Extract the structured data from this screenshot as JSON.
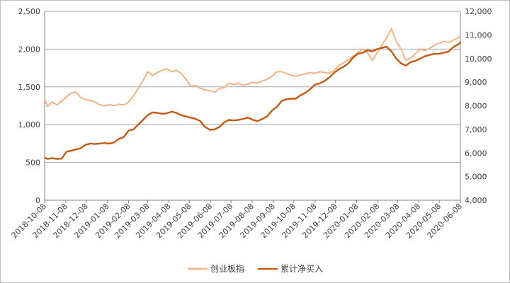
{
  "chart_data": {
    "type": "line",
    "title": "",
    "xlabel": "",
    "ylabel": "",
    "grid": true,
    "legend_position": "bottom",
    "x_ticks": [
      "2018-10-08",
      "2018-11-08",
      "2018-12-08",
      "2019-01-08",
      "2019-02-08",
      "2019-03-08",
      "2019-04-08",
      "2019-05-08",
      "2019-06-08",
      "2019-07-08",
      "2019-08-08",
      "2019-09-08",
      "2019-10-08",
      "2019-11-08",
      "2019-12-08",
      "2020-01-08",
      "2020-02-08",
      "2020-03-08",
      "2020-04-08",
      "2020-05-08",
      "2020-06-08"
    ],
    "y_left": {
      "min": 0,
      "max": 2500,
      "ticks": [
        0,
        500,
        1000,
        1500,
        2000,
        2500
      ],
      "tick_labels": [
        "0",
        "500",
        "1,000",
        "1,500",
        "2,000",
        "2,500"
      ]
    },
    "y_right": {
      "min": 4000,
      "max": 12000,
      "ticks": [
        4000,
        5000,
        6000,
        7000,
        8000,
        9000,
        10000,
        11000,
        12000
      ],
      "tick_labels": [
        "4,000",
        "5,000",
        "6,000",
        "7,000",
        "8,000",
        "9,000",
        "10,000",
        "11,000",
        "12,000"
      ]
    },
    "series": [
      {
        "name": "创业板指",
        "axis": "left",
        "color": "#f4b183",
        "x": [
          "2018-10-08",
          "2018-10-12",
          "2018-10-19",
          "2018-10-26",
          "2018-11-02",
          "2018-11-09",
          "2018-11-16",
          "2018-11-23",
          "2018-11-30",
          "2018-12-07",
          "2018-12-14",
          "2018-12-21",
          "2018-12-28",
          "2019-01-04",
          "2019-01-11",
          "2019-01-18",
          "2019-01-25",
          "2019-02-01",
          "2019-02-08",
          "2019-02-15",
          "2019-02-22",
          "2019-03-01",
          "2019-03-08",
          "2019-03-15",
          "2019-03-22",
          "2019-03-29",
          "2019-04-05",
          "2019-04-12",
          "2019-04-19",
          "2019-04-26",
          "2019-05-03",
          "2019-05-10",
          "2019-05-17",
          "2019-05-24",
          "2019-05-31",
          "2019-06-07",
          "2019-06-14",
          "2019-06-21",
          "2019-06-28",
          "2019-07-05",
          "2019-07-12",
          "2019-07-19",
          "2019-07-26",
          "2019-08-02",
          "2019-08-09",
          "2019-08-16",
          "2019-08-23",
          "2019-08-30",
          "2019-09-06",
          "2019-09-13",
          "2019-09-20",
          "2019-09-27",
          "2019-10-04",
          "2019-10-11",
          "2019-10-18",
          "2019-10-25",
          "2019-11-01",
          "2019-11-08",
          "2019-11-15",
          "2019-11-22",
          "2019-11-29",
          "2019-12-06",
          "2019-12-13",
          "2019-12-20",
          "2019-12-27",
          "2020-01-03",
          "2020-01-10",
          "2020-01-17",
          "2020-01-24",
          "2020-01-31",
          "2020-02-07",
          "2020-02-14",
          "2020-02-21",
          "2020-02-28",
          "2020-03-06",
          "2020-03-13",
          "2020-03-20",
          "2020-03-27",
          "2020-04-03",
          "2020-04-10",
          "2020-04-17",
          "2020-04-24",
          "2020-05-01",
          "2020-05-08",
          "2020-05-15",
          "2020-05-22",
          "2020-05-29",
          "2020-06-05",
          "2020-06-08"
        ],
        "values": [
          1340,
          1240,
          1300,
          1260,
          1310,
          1370,
          1420,
          1430,
          1360,
          1330,
          1320,
          1300,
          1260,
          1250,
          1265,
          1250,
          1270,
          1260,
          1300,
          1380,
          1480,
          1580,
          1700,
          1650,
          1690,
          1720,
          1740,
          1700,
          1720,
          1680,
          1600,
          1510,
          1520,
          1480,
          1460,
          1450,
          1430,
          1480,
          1490,
          1550,
          1530,
          1550,
          1520,
          1540,
          1560,
          1550,
          1580,
          1600,
          1640,
          1700,
          1700,
          1680,
          1650,
          1640,
          1660,
          1670,
          1690,
          1680,
          1700,
          1690,
          1680,
          1720,
          1780,
          1820,
          1860,
          1910,
          1960,
          2000,
          1950,
          1850,
          1950,
          2050,
          2150,
          2270,
          2100,
          2000,
          1850,
          1880,
          1940,
          2000,
          1980,
          2010,
          2050,
          2080,
          2100,
          2090,
          2120,
          2150,
          2180
        ]
      },
      {
        "name": "累计净买入",
        "axis": "right",
        "color": "#c55a11",
        "x": [
          "2018-10-08",
          "2018-10-12",
          "2018-10-19",
          "2018-10-26",
          "2018-11-02",
          "2018-11-09",
          "2018-11-16",
          "2018-11-23",
          "2018-11-30",
          "2018-12-07",
          "2018-12-14",
          "2018-12-21",
          "2018-12-28",
          "2019-01-04",
          "2019-01-11",
          "2019-01-18",
          "2019-01-25",
          "2019-02-01",
          "2019-02-08",
          "2019-02-15",
          "2019-02-22",
          "2019-03-01",
          "2019-03-08",
          "2019-03-15",
          "2019-03-22",
          "2019-03-29",
          "2019-04-05",
          "2019-04-12",
          "2019-04-19",
          "2019-04-26",
          "2019-05-03",
          "2019-05-10",
          "2019-05-17",
          "2019-05-24",
          "2019-05-31",
          "2019-06-07",
          "2019-06-14",
          "2019-06-21",
          "2019-06-28",
          "2019-07-05",
          "2019-07-12",
          "2019-07-19",
          "2019-07-26",
          "2019-08-02",
          "2019-08-09",
          "2019-08-16",
          "2019-08-23",
          "2019-08-30",
          "2019-09-06",
          "2019-09-13",
          "2019-09-20",
          "2019-09-27",
          "2019-10-04",
          "2019-10-11",
          "2019-10-18",
          "2019-10-25",
          "2019-11-01",
          "2019-11-08",
          "2019-11-15",
          "2019-11-22",
          "2019-11-29",
          "2019-12-06",
          "2019-12-13",
          "2019-12-20",
          "2019-12-27",
          "2020-01-03",
          "2020-01-10",
          "2020-01-17",
          "2020-01-24",
          "2020-01-31",
          "2020-02-07",
          "2020-02-14",
          "2020-02-21",
          "2020-02-28",
          "2020-03-06",
          "2020-03-13",
          "2020-03-20",
          "2020-03-27",
          "2020-04-03",
          "2020-04-10",
          "2020-04-17",
          "2020-04-24",
          "2020-05-01",
          "2020-05-08",
          "2020-05-15",
          "2020-05-22",
          "2020-05-29",
          "2020-06-05",
          "2020-06-08"
        ],
        "values": [
          5800,
          5750,
          5780,
          5750,
          5760,
          6050,
          6100,
          6150,
          6200,
          6350,
          6400,
          6380,
          6400,
          6420,
          6400,
          6450,
          6600,
          6680,
          6950,
          7000,
          7200,
          7400,
          7600,
          7720,
          7700,
          7660,
          7680,
          7750,
          7700,
          7600,
          7550,
          7500,
          7450,
          7350,
          7100,
          6980,
          7000,
          7100,
          7300,
          7400,
          7380,
          7400,
          7450,
          7500,
          7400,
          7350,
          7450,
          7550,
          7800,
          7950,
          8200,
          8280,
          8300,
          8300,
          8450,
          8550,
          8700,
          8900,
          8950,
          9050,
          9200,
          9400,
          9550,
          9650,
          9800,
          10050,
          10200,
          10250,
          10350,
          10300,
          10400,
          10450,
          10500,
          10300,
          10000,
          9800,
          9700,
          9850,
          9900,
          10000,
          10100,
          10150,
          10200,
          10200,
          10250,
          10300,
          10500,
          10600,
          10700
        ]
      }
    ]
  }
}
